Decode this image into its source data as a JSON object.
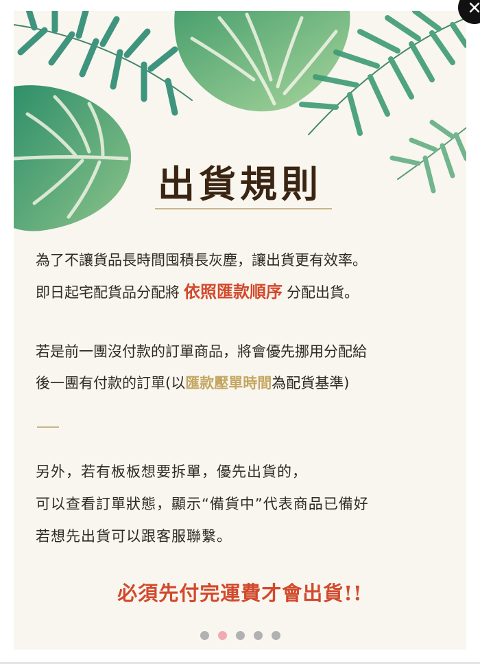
{
  "title": "出貨規則",
  "section1": {
    "line1": "為了不讓貨品長時間囤積長灰塵，讓出貨更有效率。",
    "line2_prefix": "即日起宅配貨品分配將",
    "line2_highlight": "依照匯款順序",
    "line2_suffix": "分配出貨。"
  },
  "section2": {
    "line1": "若是前一團沒付款的訂單商品，將會優先挪用分配給",
    "line2_prefix": "後一團有付款的訂單(以",
    "line2_highlight": "匯款壓單時間",
    "line2_suffix": "為配貨基準)"
  },
  "section3": {
    "line1": "另外，若有板板想要拆單，優先出貨的，",
    "line2": "可以查看訂單狀態，顯示“備貨中”代表商品已備好",
    "line3": "若想先出貨可以跟客服聯繫。"
  },
  "final_note": "必須先付完運費才會出貨!!",
  "carousel": {
    "slide_count": 5,
    "active_index": 1
  },
  "colors": {
    "accent_red": "#d2492c",
    "accent_gold": "#c3a661",
    "title_brown": "#3a2412",
    "leaf_green": "#3f9a6b"
  },
  "icons": {
    "close": "close-icon"
  }
}
